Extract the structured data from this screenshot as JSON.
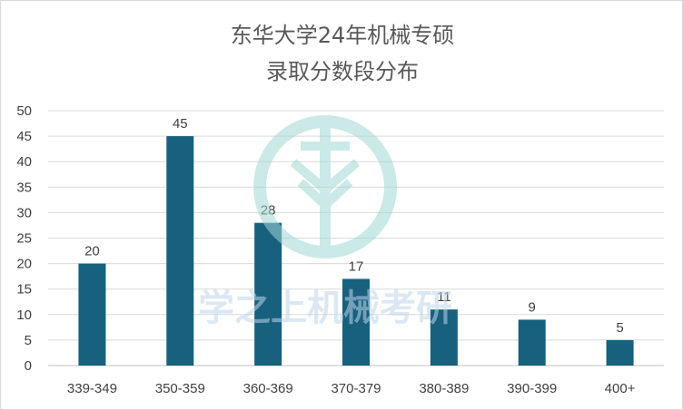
{
  "chart_data": {
    "type": "bar",
    "title": [
      "东华大学24年机械专硕",
      "录取分数段分布"
    ],
    "xlabel": "",
    "ylabel": "",
    "categories": [
      "339-349",
      "350-359",
      "360-369",
      "370-379",
      "380-389",
      "390-399",
      "400+"
    ],
    "values": [
      20,
      45,
      28,
      17,
      11,
      9,
      5
    ],
    "ylim": [
      0,
      50
    ],
    "ytick_step": 5,
    "grid": true,
    "legend": "none",
    "bar_color": "#17607e"
  },
  "watermark": {
    "text": "学之上机械考研",
    "color": "#bfe3e3"
  }
}
